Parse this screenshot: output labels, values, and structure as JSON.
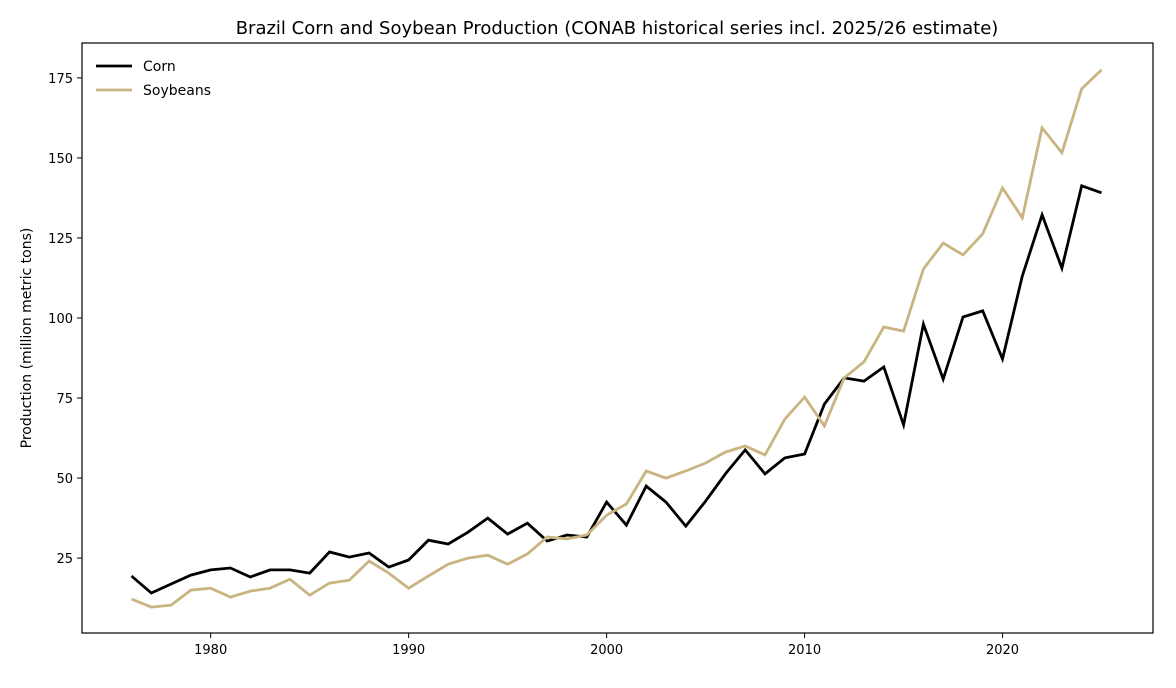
{
  "chart_data": {
    "type": "line",
    "title": "Brazil Corn and Soybean Production (CONAB historical series incl. 2025/26 estimate)",
    "xlabel": "",
    "ylabel": "Production (million metric tons)",
    "xlim": [
      1973.5,
      2027.6
    ],
    "ylim": [
      1.6,
      185.9
    ],
    "xticks": [
      1980,
      1990,
      2000,
      2010,
      2020
    ],
    "yticks": [
      25,
      50,
      75,
      100,
      125,
      150,
      175
    ],
    "grid": false,
    "legend_position": "top-left",
    "x": [
      1976,
      1977,
      1978,
      1979,
      1980,
      1981,
      1982,
      1983,
      1984,
      1985,
      1986,
      1987,
      1988,
      1989,
      1990,
      1991,
      1992,
      1993,
      1994,
      1995,
      1996,
      1997,
      1998,
      1999,
      2000,
      2001,
      2002,
      2003,
      2004,
      2005,
      2006,
      2007,
      2008,
      2009,
      2010,
      2011,
      2012,
      2013,
      2014,
      2015,
      2016,
      2017,
      2018,
      2019,
      2020,
      2021,
      2022,
      2023,
      2024,
      2025
    ],
    "series": [
      {
        "name": "Corn",
        "color": "#000000",
        "values": [
          19.4,
          14.1,
          16.9,
          19.7,
          21.3,
          21.9,
          19.1,
          21.3,
          21.3,
          20.3,
          26.9,
          25.3,
          26.6,
          22.2,
          24.4,
          30.6,
          29.4,
          33.1,
          37.5,
          32.5,
          35.9,
          30.3,
          32.2,
          31.6,
          42.5,
          35.3,
          47.5,
          42.5,
          35.0,
          42.8,
          51.3,
          58.8,
          51.3,
          56.3,
          57.5,
          73.1,
          81.3,
          80.3,
          84.7,
          66.6,
          98.1,
          80.9,
          100.3,
          102.2,
          87.2,
          113.1,
          132.2,
          115.6,
          141.3,
          139.1
        ]
      },
      {
        "name": "Soybeans",
        "color": "#c9b482",
        "values": [
          12.2,
          9.7,
          10.3,
          15.0,
          15.6,
          12.8,
          14.7,
          15.6,
          18.4,
          13.4,
          17.2,
          18.1,
          24.1,
          20.3,
          15.6,
          19.4,
          23.1,
          25.0,
          25.9,
          23.1,
          26.3,
          31.6,
          31.0,
          32.2,
          38.4,
          41.9,
          52.2,
          50.0,
          52.2,
          54.7,
          58.1,
          60.0,
          57.2,
          68.4,
          75.3,
          66.3,
          81.3,
          86.3,
          97.2,
          95.9,
          115.3,
          123.4,
          119.7,
          126.3,
          140.6,
          131.3,
          159.4,
          151.6,
          171.6,
          177.5
        ]
      }
    ]
  }
}
